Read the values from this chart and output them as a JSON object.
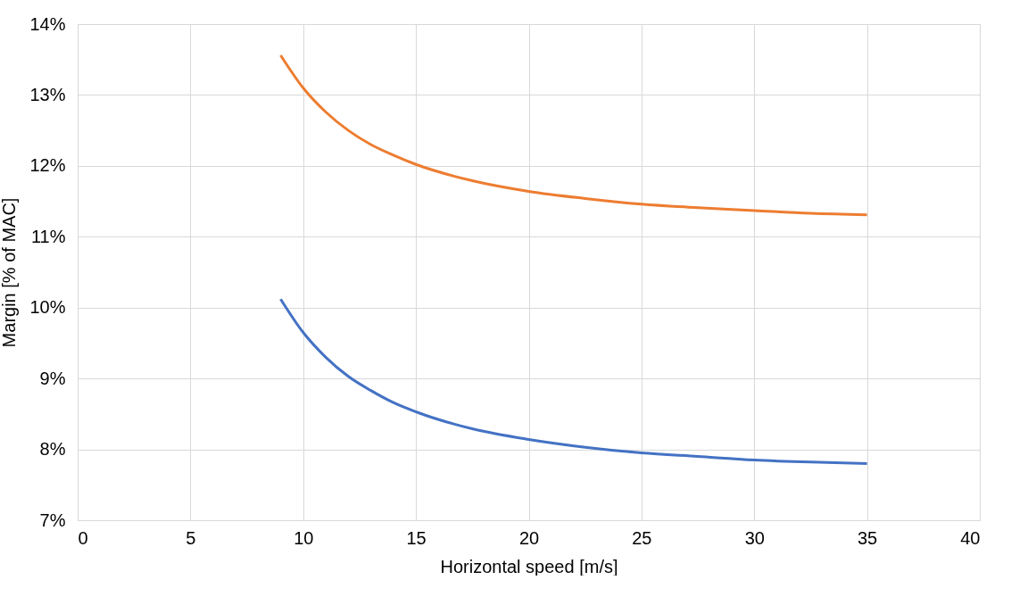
{
  "chart_data": {
    "type": "line",
    "xlabel": "Horizontal speed [m/s]",
    "ylabel": "Margin [% of MAC]",
    "x": [
      9,
      10,
      11,
      12,
      13,
      14,
      15,
      17.5,
      20,
      22.5,
      25,
      27.5,
      30,
      32.5,
      35
    ],
    "series": [
      {
        "color": "#ed7d31",
        "values": [
          13.56,
          13.1,
          12.76,
          12.5,
          12.3,
          12.15,
          12.02,
          11.79,
          11.64,
          11.54,
          11.46,
          11.41,
          11.37,
          11.33,
          11.31
        ]
      },
      {
        "color": "#4472c4",
        "values": [
          10.12,
          9.65,
          9.3,
          9.03,
          8.83,
          8.66,
          8.53,
          8.29,
          8.14,
          8.03,
          7.95,
          7.9,
          7.85,
          7.82,
          7.8
        ]
      }
    ],
    "xlim": [
      0,
      40
    ],
    "xticks": [
      0,
      5,
      10,
      15,
      20,
      25,
      30,
      35,
      40
    ],
    "ylim": [
      7,
      14
    ],
    "yticks": [
      {
        "value": 7,
        "label": "7%"
      },
      {
        "value": 8,
        "label": "8%"
      },
      {
        "value": 9,
        "label": "9%"
      },
      {
        "value": 10,
        "label": "10%"
      },
      {
        "value": 11,
        "label": "11%"
      },
      {
        "value": 12,
        "label": "12%"
      },
      {
        "value": 13,
        "label": "13%"
      },
      {
        "value": 14,
        "label": "14%"
      }
    ],
    "grid": true,
    "legend": false,
    "marker": "none",
    "line_style": "solid"
  }
}
